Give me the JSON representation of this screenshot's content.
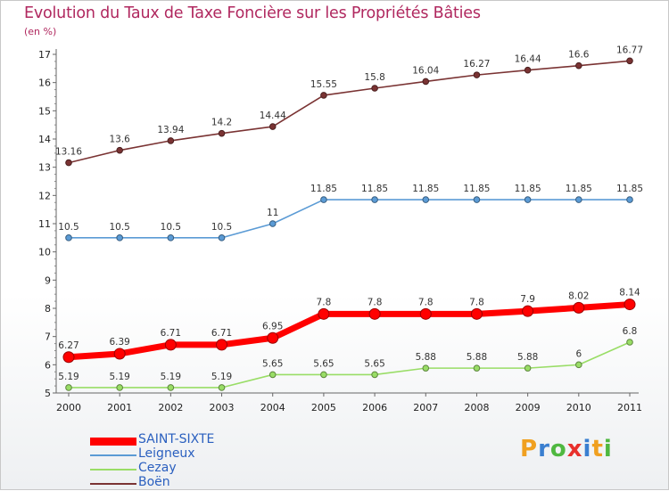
{
  "title": "Evolution du Taux de Taxe Foncière sur les Propriétés Bâties",
  "unit": "(en %)",
  "logo": "Proxiti",
  "chart_data": {
    "type": "line",
    "x": [
      "2000",
      "2001",
      "2002",
      "2003",
      "2004",
      "2005",
      "2006",
      "2007",
      "2008",
      "2009",
      "2010",
      "2011"
    ],
    "ylim": [
      5,
      17
    ],
    "yticks": [
      5,
      6,
      7,
      8,
      9,
      10,
      11,
      12,
      13,
      14,
      15,
      16,
      17
    ],
    "grid": false,
    "legend_position": "bottom-left",
    "series": [
      {
        "name": "SAINT-SIXTE",
        "color": "#ff0000",
        "values": [
          6.27,
          6.39,
          6.71,
          6.71,
          6.95,
          7.8,
          7.8,
          7.8,
          7.8,
          7.9,
          8.02,
          8.14
        ],
        "labels": [
          "6.27",
          "6.39",
          "6.71",
          "6.71",
          "6.95",
          "7.8",
          "7.8",
          "7.8",
          "7.8",
          "7.9",
          "8.02",
          "8.14"
        ]
      },
      {
        "name": "Leigneux",
        "color": "#5b9bd5",
        "values": [
          10.5,
          10.5,
          10.5,
          10.5,
          11,
          11.85,
          11.85,
          11.85,
          11.85,
          11.85,
          11.85,
          11.85
        ],
        "labels": [
          "10.5",
          "10.5",
          "10.5",
          "10.5",
          "11",
          "11.85",
          "11.85",
          "11.85",
          "11.85",
          "11.85",
          "11.85",
          "11.85"
        ]
      },
      {
        "name": "Cezay",
        "color": "#99dd66",
        "values": [
          5.19,
          5.19,
          5.19,
          5.19,
          5.65,
          5.65,
          5.65,
          5.88,
          5.88,
          5.88,
          6,
          6.8
        ],
        "labels": [
          "5.19",
          "5.19",
          "5.19",
          "5.19",
          "5.65",
          "5.65",
          "5.65",
          "5.88",
          "5.88",
          "5.88",
          "6",
          "6.8"
        ]
      },
      {
        "name": "Boën",
        "color": "#7a3333",
        "values": [
          13.16,
          13.6,
          13.94,
          14.2,
          14.44,
          15.55,
          15.8,
          16.04,
          16.27,
          16.44,
          16.6,
          16.77
        ],
        "labels": [
          "13.16",
          "13.6",
          "13.94",
          "14.2",
          "14.44",
          "15.55",
          "15.8",
          "16.04",
          "16.27",
          "16.44",
          "16.6",
          "16.77"
        ]
      }
    ]
  }
}
